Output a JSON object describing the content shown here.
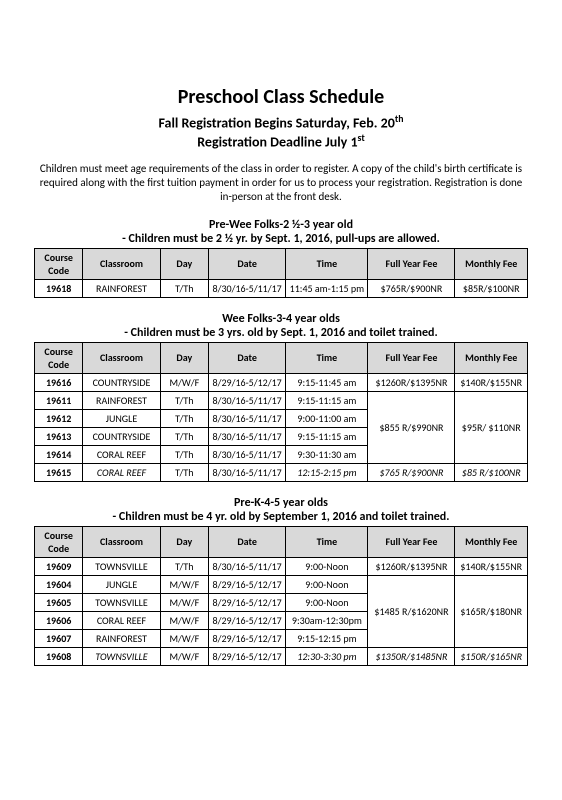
{
  "title": "Preschool Class Schedule",
  "sub1_a": "Fall Registration Begins Saturday, Feb. 20",
  "sub2_a": "Registration Deadline July 1",
  "intro": "Children must meet age requirements of the class in order to register. A copy of the child's birth certificate is required along with the first tuition payment in order for us to process your registration. Registration is done in-person at the front desk.",
  "headers": {
    "code": "Course Code",
    "class": "Classroom",
    "day": "Day",
    "date": "Date",
    "time": "Time",
    "full": "Full Year Fee",
    "month": "Monthly Fee"
  },
  "sec1": {
    "title": "Pre-Wee Folks-2 ½-3 year old",
    "sub": "- Children must be 2 ½ yr. by Sept. 1, 2016, pull-ups are allowed.",
    "rows": [
      {
        "code": "19618",
        "class": "RAINFOREST",
        "day": "T/Th",
        "date": "8/30/16-5/11/17",
        "time": "11:45 am-1:15 pm",
        "full": "$765R/$900NR",
        "month": "$85R/$100NR"
      }
    ]
  },
  "sec2": {
    "title": "Wee Folks-3-4 year olds",
    "sub": "- Children must be 3 yrs. old by Sept. 1, 2016 and toilet trained.",
    "rows": [
      {
        "code": "19616",
        "class": "COUNTRYSIDE",
        "day": "M/W/F",
        "date": "8/29/16-5/12/17",
        "time": "9:15-11:45 am"
      },
      {
        "code": "19611",
        "class": "RAINFOREST",
        "day": "T/Th",
        "date": "8/30/16-5/11/17",
        "time": "9:15-11:15 am"
      },
      {
        "code": "19612",
        "class": "JUNGLE",
        "day": "T/Th",
        "date": "8/30/16-5/11/17",
        "time": "9:00-11:00 am"
      },
      {
        "code": "19613",
        "class": "COUNTRYSIDE",
        "day": "T/Th",
        "date": "8/30/16-5/11/17",
        "time": "9:15-11:15 am"
      },
      {
        "code": "19614",
        "class": "CORAL REEF",
        "day": "T/Th",
        "date": "8/30/16-5/11/17",
        "time": "9:30-11:30 am"
      },
      {
        "code": "19615",
        "class": "CORAL REEF",
        "day": "T/Th",
        "date": "8/30/16-5/11/17",
        "time": "12:15-2:15 pm"
      }
    ],
    "fee1_full": "$1260R/$1395NR",
    "fee1_month": "$140R/$155NR",
    "fee2_full": "$855 R/$990NR",
    "fee2_month": "$95R/ $110NR",
    "fee3_full": "$765 R/$900NR",
    "fee3_month": "$85 R/$100NR"
  },
  "sec3": {
    "title": "Pre-K-4-5 year olds",
    "sub": "- Children must be 4 yr. old by September 1, 2016 and toilet trained.",
    "rows": [
      {
        "code": "19609",
        "class": "TOWNSVILLE",
        "day": "T/Th",
        "date": "8/30/16-5/11/17",
        "time": "9:00-Noon"
      },
      {
        "code": "19604",
        "class": "JUNGLE",
        "day": "M/W/F",
        "date": "8/29/16-5/12/17",
        "time": "9:00-Noon"
      },
      {
        "code": "19605",
        "class": "TOWNSVILLE",
        "day": "M/W/F",
        "date": "8/29/16-5/12/17",
        "time": "9:00-Noon"
      },
      {
        "code": "19606",
        "class": "CORAL REEF",
        "day": "M/W/F",
        "date": "8/29/16-5/12/17",
        "time": "9:30am-12:30pm"
      },
      {
        "code": "19607",
        "class": "RAINFOREST",
        "day": "M/W/F",
        "date": "8/29/16-5/12/17",
        "time": "9:15-12:15 pm"
      },
      {
        "code": "19608",
        "class": "TOWNSVILLE",
        "day": "M/W/F",
        "date": "8/29/16-5/12/17",
        "time": "12:30-3:30 pm"
      }
    ],
    "fee1_full": "$1260R/$1395NR",
    "fee1_month": "$140R/$155NR",
    "fee2_full": "$1485 R/$1620NR",
    "fee2_month": "$165R/$180NR",
    "fee3_full": "$1350R/$1485NR",
    "fee3_month": "$150R/$165NR"
  }
}
